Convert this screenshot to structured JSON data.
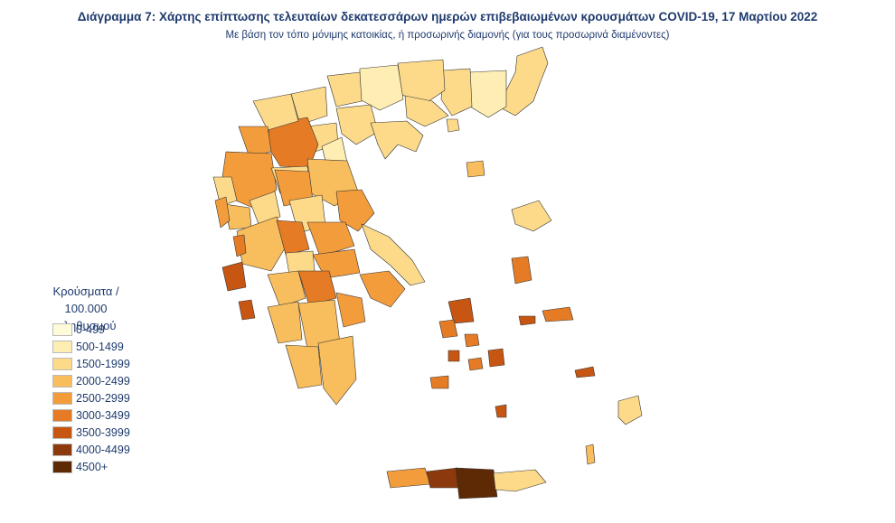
{
  "header": {
    "title": "Διάγραμμα 7: Χάρτης επίπτωσης τελευταίων δεκατεσσάρων ημερών επιβεβαιωμένων κρουσμάτων COVID-19, 17 Μαρτίου 2022",
    "subtitle": "Με βάση τον τόπο μόνιμης κατοικίας, ή προσωρινής διαμονής (για τους προσωρινά διαμένοντες)"
  },
  "legend": {
    "title_line1": "Κρούσματα /",
    "title_line2": "100.000 πληθυσμού",
    "items": [
      {
        "label": "0-499",
        "color": "#fffbd8"
      },
      {
        "label": "500-1499",
        "color": "#feeeb3"
      },
      {
        "label": "1500-1999",
        "color": "#fcda8a"
      },
      {
        "label": "2000-2499",
        "color": "#f8bd5c"
      },
      {
        "label": "2500-2999",
        "color": "#f39c3c"
      },
      {
        "label": "3000-3499",
        "color": "#e57b25"
      },
      {
        "label": "3500-3999",
        "color": "#c75613"
      },
      {
        "label": "4000-4499",
        "color": "#8c3a0d"
      },
      {
        "label": "4500+",
        "color": "#5e2a06"
      }
    ]
  }
}
